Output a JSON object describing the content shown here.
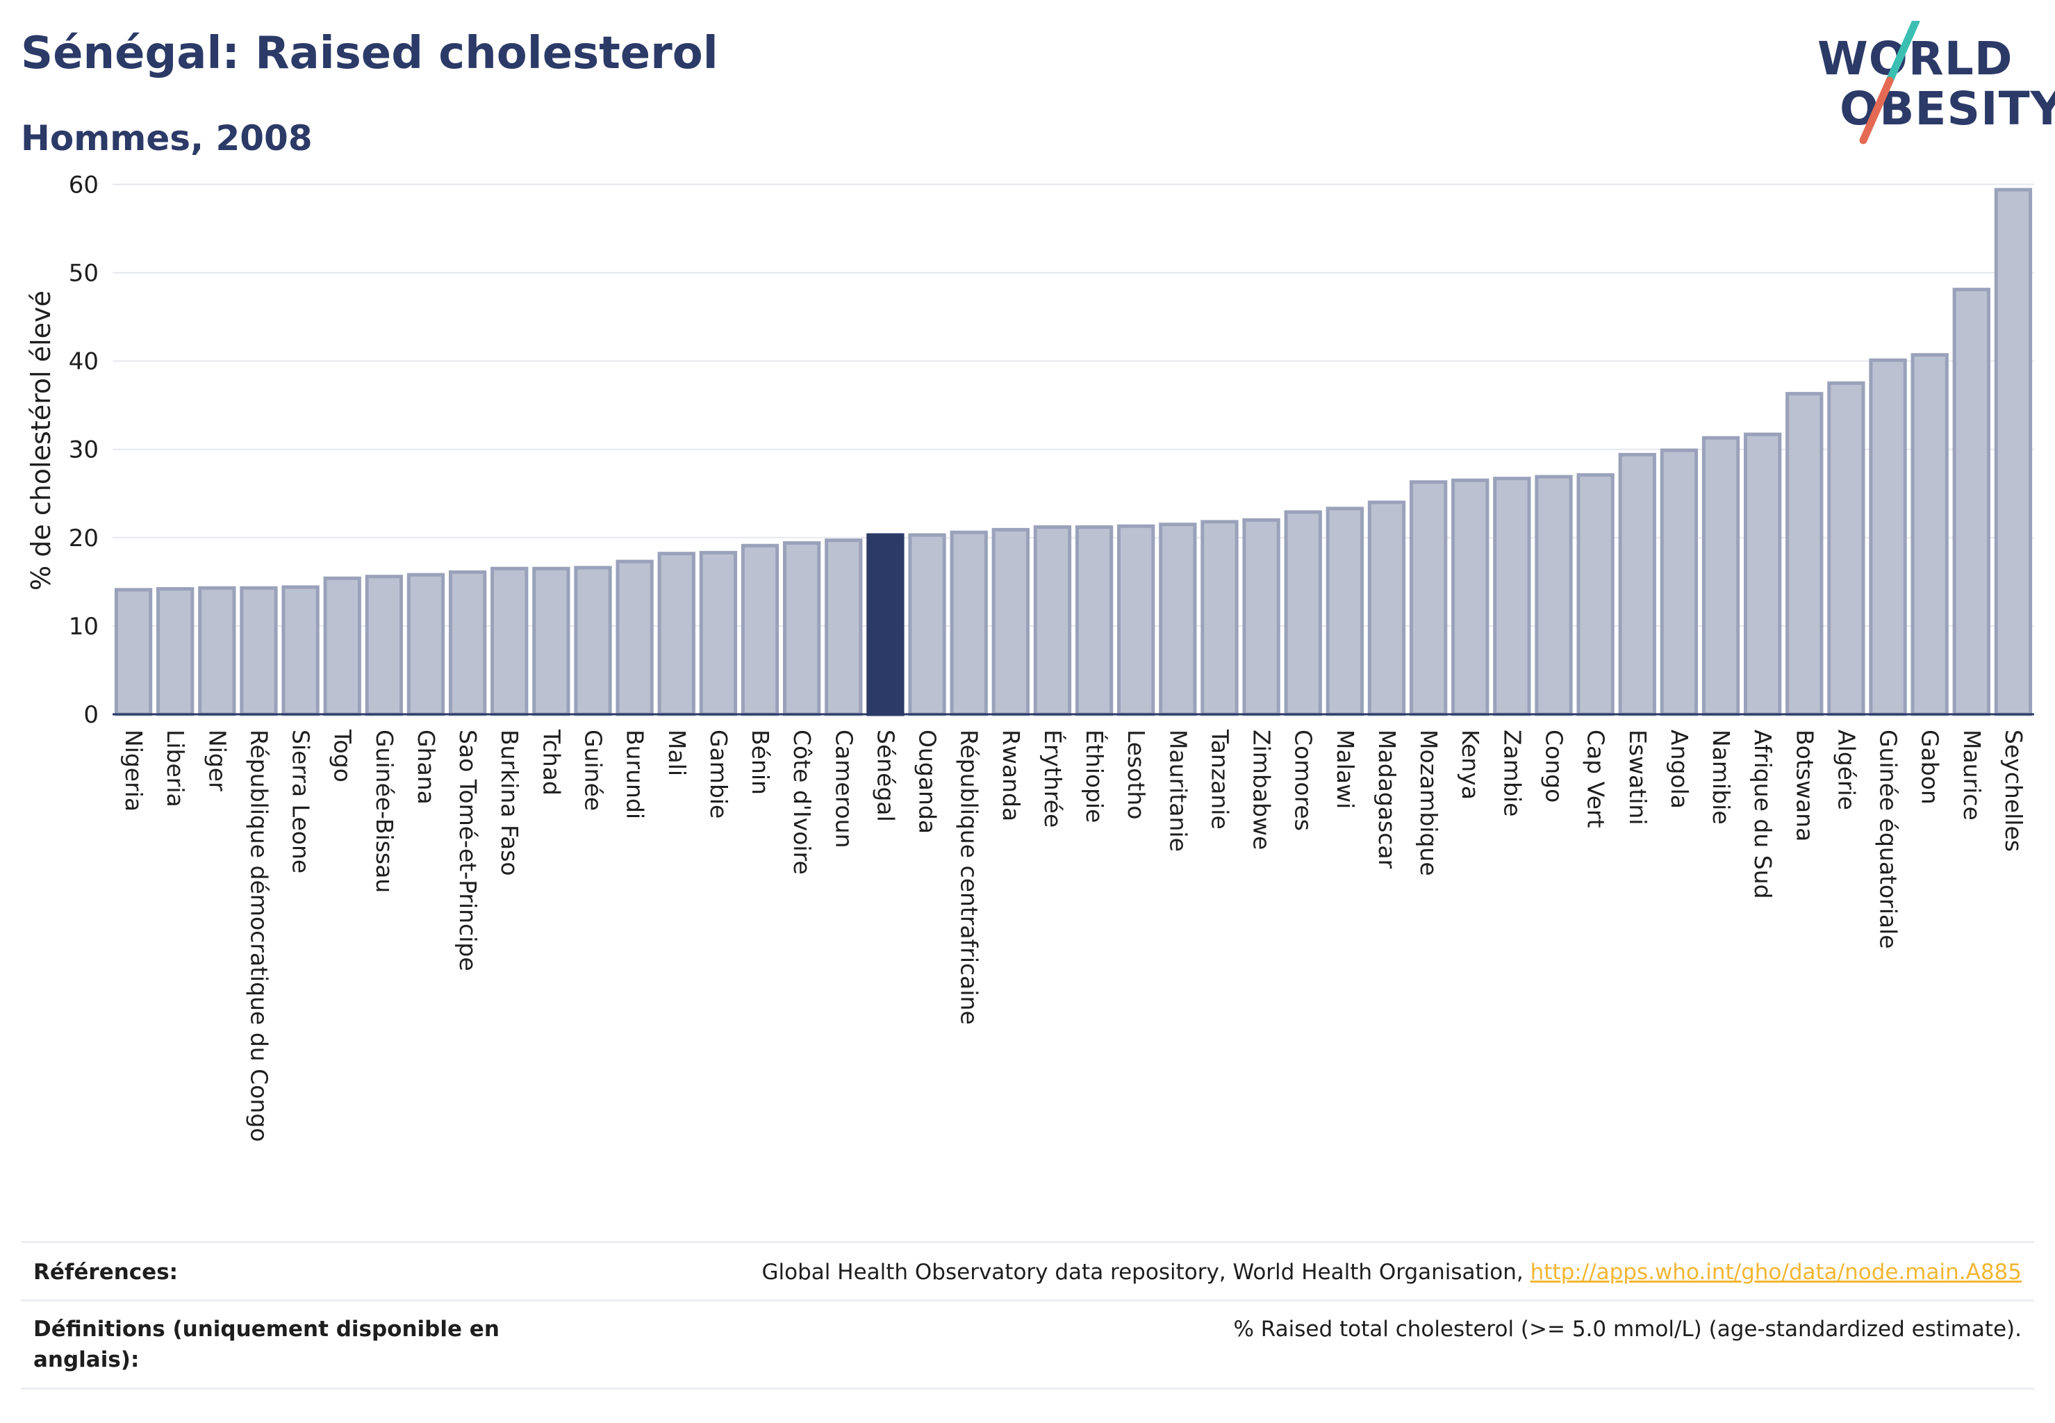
{
  "header": {
    "title": "Sénégal: Raised cholesterol",
    "subtitle": "Hommes, 2008"
  },
  "logo": {
    "line1": "WORLD",
    "line2": "OBESITY",
    "colors": {
      "text": "#2b3a67",
      "slash_top": "#3bbfb2",
      "slash_bottom": "#e56a54"
    }
  },
  "chart_data": {
    "type": "bar",
    "title": "Sénégal: Raised cholesterol",
    "subtitle": "Hommes, 2008",
    "xlabel": "",
    "ylabel": "% de cholestérol élevé",
    "ylim": [
      0,
      62
    ],
    "yticks": [
      0,
      10,
      20,
      30,
      40,
      50,
      60
    ],
    "grid": true,
    "highlight": "Sénégal",
    "colors": {
      "bar": "#bcc1d1",
      "bar_edge": "#9aa1ba",
      "highlight": "#2b3a67",
      "axis": "#2b3a67",
      "grid": "#e6e8ee"
    },
    "categories": [
      "Nigeria",
      "Liberia",
      "Niger",
      "République démocratique du Congo",
      "Sierra Leone",
      "Togo",
      "Guinée-Bissau",
      "Ghana",
      "Sao Tomé-et-Principe",
      "Burkina Faso",
      "Tchad",
      "Guinée",
      "Burundi",
      "Mali",
      "Gambie",
      "Bénin",
      "Côte d'Ivoire",
      "Cameroun",
      "Sénégal",
      "Ouganda",
      "République centrafricaine",
      "Rwanda",
      "Érythrée",
      "Éthiopie",
      "Lesotho",
      "Mauritanie",
      "Tanzanie",
      "Zimbabwe",
      "Comores",
      "Malawi",
      "Madagascar",
      "Mozambique",
      "Kenya",
      "Zambie",
      "Congo",
      "Cap Vert",
      "Eswatini",
      "Angola",
      "Namibie",
      "Afrique du Sud",
      "Botswana",
      "Algérie",
      "Guinée équatoriale",
      "Gabon",
      "Maurice",
      "Seychelles"
    ],
    "values": [
      14.1,
      14.2,
      14.3,
      14.3,
      14.4,
      15.4,
      15.6,
      15.8,
      16.1,
      16.5,
      16.5,
      16.6,
      17.3,
      18.2,
      18.3,
      19.1,
      19.4,
      19.7,
      20.3,
      20.3,
      20.6,
      20.9,
      21.2,
      21.2,
      21.3,
      21.5,
      21.8,
      22.0,
      22.9,
      23.3,
      24.0,
      26.3,
      26.5,
      26.7,
      26.9,
      27.1,
      29.4,
      29.9,
      31.3,
      31.7,
      36.3,
      37.5,
      40.1,
      40.7,
      48.1,
      59.4
    ]
  },
  "footer": {
    "references_label": "Références:",
    "references_text": "Global Health Observatory data repository, World Health Organisation, ",
    "references_link": "http://apps.who.int/gho/data/node.main.A885",
    "definitions_label": "Définitions (uniquement disponible en anglais):",
    "definitions_text": "% Raised total cholesterol (>= 5.0 mmol/L) (age-standardized estimate)."
  }
}
